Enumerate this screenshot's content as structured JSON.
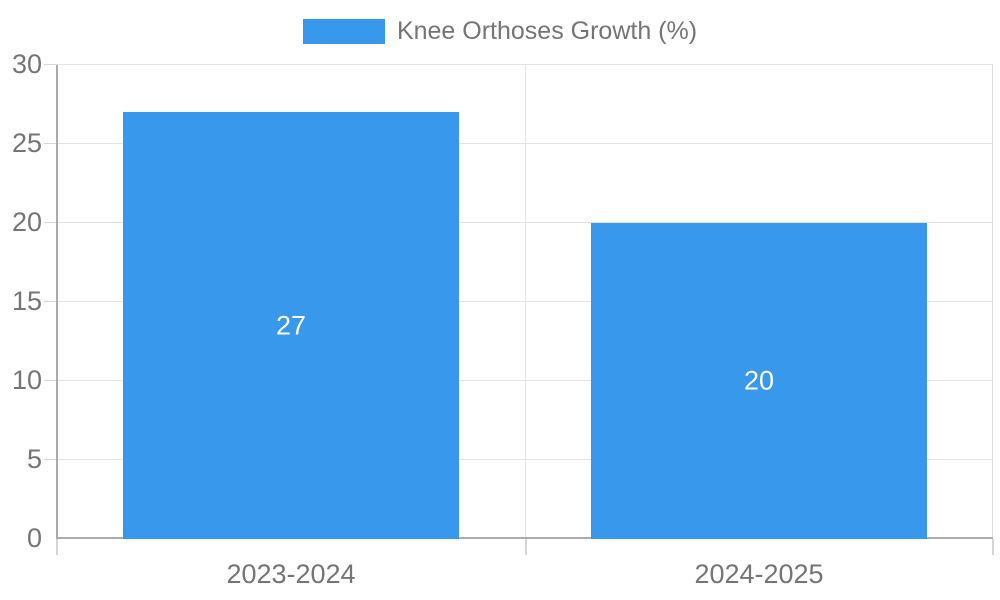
{
  "chart_data": {
    "type": "bar",
    "title": "",
    "series_label": "Knee Orthoses Growth (%)",
    "categories": [
      "2023-2024",
      "2024-2025"
    ],
    "values": [
      27,
      20
    ],
    "value_labels": [
      "27",
      "20"
    ],
    "xlabel": "",
    "ylabel": "",
    "ylim": [
      0,
      30
    ],
    "yticks": [
      0,
      5,
      10,
      15,
      20,
      25,
      30
    ],
    "grid": true,
    "legend_position": "top-center",
    "bar_width_pct": 72,
    "colors": {
      "bar": "#3898EC",
      "value_label": "#FFFFFF",
      "axis_text": "#757575",
      "gridline": "#E3E3E3",
      "tick": "#D6D6D6",
      "axis_line": "#ABABAB",
      "plot_border": "#D9D9D9"
    }
  }
}
